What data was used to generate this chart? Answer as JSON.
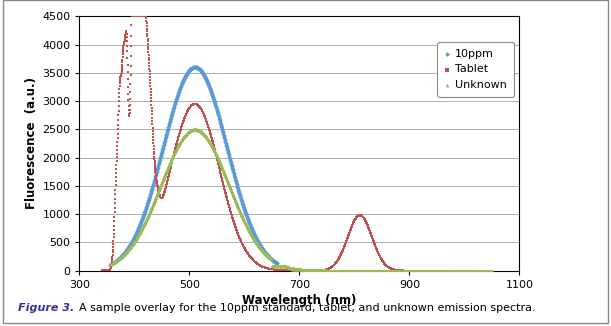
{
  "xlabel": "Wavelength (nm)",
  "ylabel": "Fluorescence  (a.u.)",
  "xlim": [
    300,
    1100
  ],
  "ylim": [
    0,
    4500
  ],
  "yticks": [
    0,
    500,
    1000,
    1500,
    2000,
    2500,
    3000,
    3500,
    4000,
    4500
  ],
  "xticks": [
    300,
    500,
    700,
    900,
    1100
  ],
  "caption": "Figure 3. A sample overlay for the 10ppm standard, tablet, and unknown emission spectra.",
  "color_10ppm": "#5B9BD5",
  "color_tablet": "#C0504D",
  "color_unknown": "#9BBB59",
  "background_color": "#ffffff",
  "grid_color": "#b0b0b0"
}
